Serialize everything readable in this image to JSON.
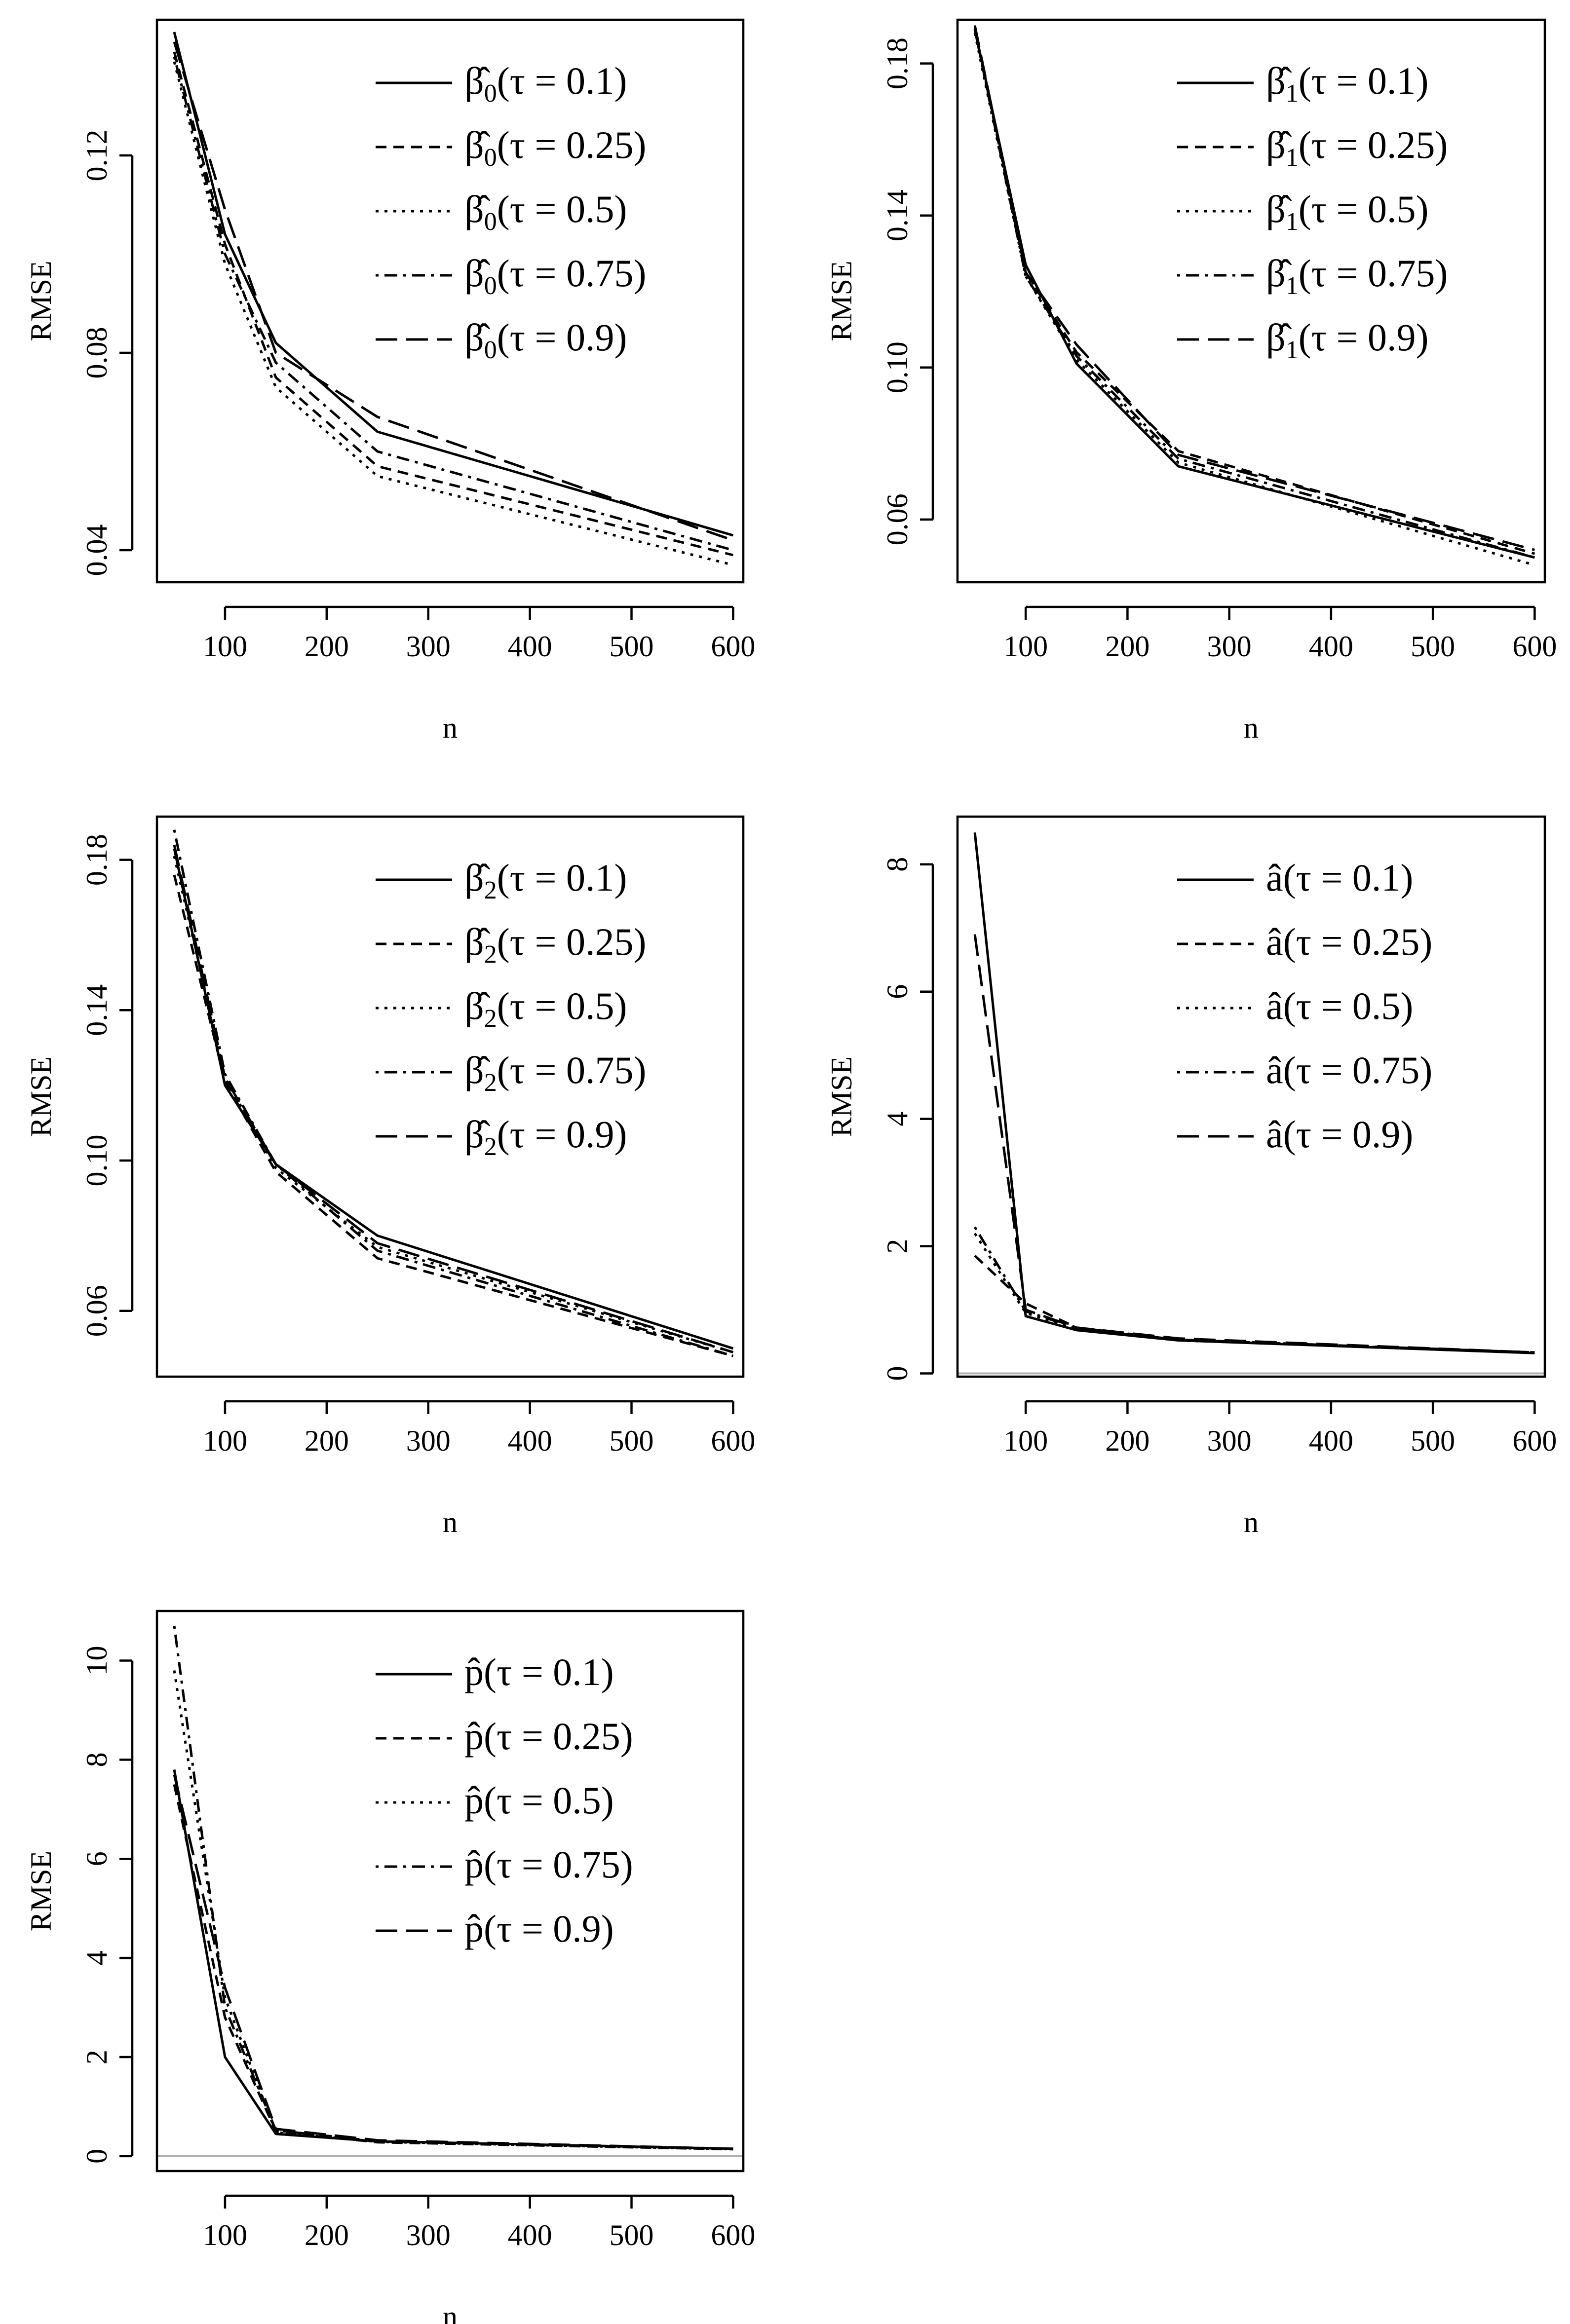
{
  "styles": {
    "solid": "",
    "dashed": "22,14",
    "dotted": "6,12",
    "dotdash": "6,12,26,12",
    "longdash": "44,18"
  },
  "chart_data": [
    {
      "type": "line",
      "x": [
        50,
        100,
        150,
        250,
        600
      ],
      "xticks": [
        "100",
        "200",
        "300",
        "400",
        "500",
        "600"
      ],
      "xlim": [
        33,
        610
      ],
      "ylim": [
        0.0335,
        0.1475
      ],
      "yticks": [
        "0.04",
        "0.08",
        "0.12"
      ],
      "xlabel": "n",
      "ylabel": "RMSE",
      "legend_position": "top-right",
      "legend_symbol": "β̂",
      "legend_sub": "0",
      "series": [
        {
          "name": "β̂0(τ = 0.1)",
          "tau": "(τ = 0.1)",
          "style": "solid",
          "values": [
            0.145,
            0.104,
            0.082,
            0.064,
            0.043
          ]
        },
        {
          "name": "β̂0(τ = 0.25)",
          "tau": "(τ = 0.25)",
          "style": "dashed",
          "values": [
            0.141,
            0.102,
            0.075,
            0.057,
            0.039
          ]
        },
        {
          "name": "β̂0(τ = 0.5)",
          "tau": "(τ = 0.5)",
          "style": "dotted",
          "values": [
            0.139,
            0.098,
            0.073,
            0.055,
            0.037
          ]
        },
        {
          "name": "β̂0(τ = 0.75)",
          "tau": "(τ = 0.75)",
          "style": "dotdash",
          "values": [
            0.14,
            0.1,
            0.078,
            0.06,
            0.04
          ]
        },
        {
          "name": "β̂0(τ = 0.9)",
          "tau": "(τ = 0.9)",
          "style": "longdash",
          "values": [
            0.143,
            0.109,
            0.08,
            0.067,
            0.042
          ]
        }
      ]
    },
    {
      "type": "line",
      "x": [
        50,
        100,
        150,
        250,
        600
      ],
      "xticks": [
        "100",
        "200",
        "300",
        "400",
        "500",
        "600"
      ],
      "xlim": [
        33,
        610
      ],
      "ylim": [
        0.0435,
        0.1915
      ],
      "yticks": [
        "0.06",
        "0.10",
        "0.14",
        "0.18"
      ],
      "xlabel": "n",
      "ylabel": "RMSE",
      "legend_position": "top-right",
      "legend_symbol": "β̂",
      "legend_sub": "1",
      "series": [
        {
          "name": "β̂1(τ = 0.1)",
          "tau": "(τ = 0.1)",
          "style": "solid",
          "values": [
            0.189,
            0.127,
            0.101,
            0.074,
            0.05
          ]
        },
        {
          "name": "β̂1(τ = 0.25)",
          "tau": "(τ = 0.25)",
          "style": "dashed",
          "values": [
            0.189,
            0.125,
            0.104,
            0.078,
            0.051
          ]
        },
        {
          "name": "β̂1(τ = 0.5)",
          "tau": "(τ = 0.5)",
          "style": "dotted",
          "values": [
            0.188,
            0.124,
            0.102,
            0.075,
            0.048
          ]
        },
        {
          "name": "β̂1(τ = 0.75)",
          "tau": "(τ = 0.75)",
          "style": "dotdash",
          "values": [
            0.189,
            0.124,
            0.103,
            0.076,
            0.05
          ]
        },
        {
          "name": "β̂1(τ = 0.9)",
          "tau": "(τ = 0.9)",
          "style": "longdash",
          "values": [
            0.19,
            0.125,
            0.106,
            0.077,
            0.052
          ]
        }
      ]
    },
    {
      "type": "line",
      "x": [
        50,
        100,
        150,
        250,
        600
      ],
      "xticks": [
        "100",
        "200",
        "300",
        "400",
        "500",
        "600"
      ],
      "xlim": [
        33,
        610
      ],
      "ylim": [
        0.0425,
        0.1915
      ],
      "yticks": [
        "0.06",
        "0.10",
        "0.14",
        "0.18"
      ],
      "xlabel": "n",
      "ylabel": "RMSE",
      "legend_position": "top-right",
      "legend_symbol": "β̂",
      "legend_sub": "2",
      "series": [
        {
          "name": "β̂2(τ = 0.1)",
          "tau": "(τ = 0.1)",
          "style": "solid",
          "values": [
            0.183,
            0.12,
            0.099,
            0.08,
            0.05
          ]
        },
        {
          "name": "β̂2(τ = 0.25)",
          "tau": "(τ = 0.25)",
          "style": "dashed",
          "values": [
            0.176,
            0.121,
            0.097,
            0.074,
            0.048
          ]
        },
        {
          "name": "β̂2(τ = 0.5)",
          "tau": "(τ = 0.5)",
          "style": "dotted",
          "values": [
            0.181,
            0.122,
            0.098,
            0.077,
            0.049
          ]
        },
        {
          "name": "β̂2(τ = 0.75)",
          "tau": "(τ = 0.75)",
          "style": "dotdash",
          "values": [
            0.188,
            0.123,
            0.099,
            0.076,
            0.048
          ]
        },
        {
          "name": "β̂2(τ = 0.9)",
          "tau": "(τ = 0.9)",
          "style": "longdash",
          "values": [
            0.184,
            0.122,
            0.099,
            0.078,
            0.049
          ]
        }
      ]
    },
    {
      "type": "line",
      "x": [
        50,
        100,
        150,
        250,
        600
      ],
      "xticks": [
        "100",
        "200",
        "300",
        "400",
        "500",
        "600"
      ],
      "xlim": [
        33,
        610
      ],
      "ylim": [
        -0.05,
        8.75
      ],
      "yticks": [
        "0",
        "2",
        "4",
        "6",
        "8"
      ],
      "xlabel": "n",
      "ylabel": "RMSE",
      "zero_line": true,
      "legend_position": "top-right",
      "legend_symbol": "â",
      "legend_sub": "",
      "series": [
        {
          "name": "â(τ = 0.1)",
          "tau": "(τ = 0.1)",
          "style": "solid",
          "values": [
            8.5,
            0.9,
            0.68,
            0.52,
            0.32
          ]
        },
        {
          "name": "â(τ = 0.25)",
          "tau": "(τ = 0.25)",
          "style": "dashed",
          "values": [
            1.85,
            1.1,
            0.72,
            0.53,
            0.33
          ]
        },
        {
          "name": "â(τ = 0.5)",
          "tau": "(τ = 0.5)",
          "style": "dotted",
          "values": [
            2.2,
            0.95,
            0.7,
            0.52,
            0.33
          ]
        },
        {
          "name": "â(τ = 0.75)",
          "tau": "(τ = 0.75)",
          "style": "dotdash",
          "values": [
            2.3,
            0.98,
            0.71,
            0.53,
            0.33
          ]
        },
        {
          "name": "â(τ = 0.9)",
          "tau": "(τ = 0.9)",
          "style": "longdash",
          "values": [
            6.9,
            1.0,
            0.72,
            0.55,
            0.33
          ]
        }
      ]
    },
    {
      "type": "line",
      "x": [
        50,
        100,
        150,
        250,
        600
      ],
      "xticks": [
        "100",
        "200",
        "300",
        "400",
        "500",
        "600"
      ],
      "xlim": [
        33,
        610
      ],
      "ylim": [
        -0.3,
        11.0
      ],
      "yticks": [
        "0",
        "2",
        "4",
        "6",
        "8",
        "10"
      ],
      "xlabel": "n",
      "ylabel": "RMSE",
      "zero_line": true,
      "legend_position": "top-right",
      "legend_symbol": "p̂",
      "legend_sub": "",
      "series": [
        {
          "name": "p̂(τ = 0.1)",
          "tau": "(τ = 0.1)",
          "style": "solid",
          "values": [
            7.8,
            2.0,
            0.45,
            0.3,
            0.15
          ]
        },
        {
          "name": "p̂(τ = 0.25)",
          "tau": "(τ = 0.25)",
          "style": "dashed",
          "values": [
            7.5,
            2.8,
            0.5,
            0.28,
            0.14
          ]
        },
        {
          "name": "p̂(τ = 0.5)",
          "tau": "(τ = 0.5)",
          "style": "dotted",
          "values": [
            9.8,
            3.2,
            0.48,
            0.29,
            0.14
          ]
        },
        {
          "name": "p̂(τ = 0.75)",
          "tau": "(τ = 0.75)",
          "style": "dotdash",
          "values": [
            10.7,
            3.0,
            0.52,
            0.3,
            0.15
          ]
        },
        {
          "name": "p̂(τ = 0.9)",
          "tau": "(τ = 0.9)",
          "style": "longdash",
          "values": [
            7.7,
            3.4,
            0.55,
            0.32,
            0.15
          ]
        }
      ]
    }
  ]
}
